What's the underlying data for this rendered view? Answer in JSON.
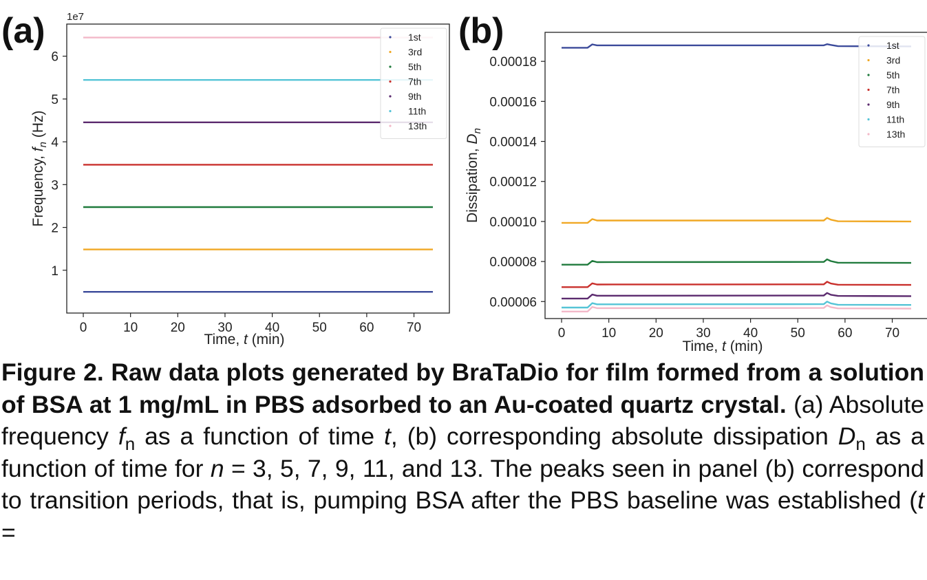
{
  "chart_data": [
    {
      "type": "line",
      "panel_label": "(a)",
      "offset_label": "1e7",
      "xlabel_parts": [
        "Time, ",
        "t",
        " (min)"
      ],
      "ylabel_parts": [
        "Frequency, ",
        "f",
        "n",
        " (Hz)"
      ],
      "xlim": [
        -3.5,
        77.5
      ],
      "ylim": [
        0.0,
        6.75
      ],
      "xticks": [
        0,
        10,
        20,
        30,
        40,
        50,
        60,
        70
      ],
      "yticks": [
        1,
        2,
        3,
        4,
        5,
        6
      ],
      "ytick_labels": [
        "1",
        "2",
        "3",
        "4",
        "5",
        "6"
      ],
      "x": [
        0,
        74
      ],
      "legend_position": "top-right",
      "series": [
        {
          "name": "1st",
          "color": "#3b4a9a",
          "values": [
            0.495,
            0.495
          ]
        },
        {
          "name": "3rd",
          "color": "#f0a824",
          "values": [
            1.485,
            1.485
          ]
        },
        {
          "name": "5th",
          "color": "#1f7a3c",
          "values": [
            2.475,
            2.475
          ]
        },
        {
          "name": "7th",
          "color": "#c9302c",
          "values": [
            3.465,
            3.465
          ]
        },
        {
          "name": "9th",
          "color": "#5b2a6e",
          "values": [
            4.455,
            4.455
          ]
        },
        {
          "name": "11th",
          "color": "#55c4d6",
          "values": [
            5.445,
            5.445
          ]
        },
        {
          "name": "13th",
          "color": "#f3b8c8",
          "values": [
            6.435,
            6.435
          ]
        }
      ]
    },
    {
      "type": "line",
      "panel_label": "(b)",
      "xlabel_parts": [
        "Time, ",
        "t",
        " (min)"
      ],
      "ylabel_parts": [
        "Dissipation, ",
        "D",
        "n"
      ],
      "xlim": [
        -3.5,
        77.5
      ],
      "ylim": [
        5.15e-05,
        0.0001945
      ],
      "xticks": [
        0,
        10,
        20,
        30,
        40,
        50,
        60,
        70
      ],
      "yticks": [
        6e-05,
        8e-05,
        0.0001,
        0.00012,
        0.00014,
        0.00016,
        0.00018
      ],
      "ytick_labels": [
        "0.00006",
        "0.00008",
        "0.00010",
        "0.00012",
        "0.00014",
        "0.00016",
        "0.00018"
      ],
      "x": [
        0,
        5.5,
        6.5,
        7.5,
        55.5,
        56.2,
        57,
        58.5,
        74
      ],
      "legend_position": "top-right",
      "series": [
        {
          "name": "1st",
          "color": "#3b4a9a",
          "values": [
            0.0001868,
            0.0001868,
            0.0001885,
            0.000188,
            0.000188,
            0.0001886,
            0.0001882,
            0.0001876,
            0.0001875
          ]
        },
        {
          "name": "3rd",
          "color": "#f0a824",
          "values": [
            9.93e-05,
            9.93e-05,
            0.0001012,
            0.0001005,
            0.0001005,
            0.0001018,
            0.0001009,
            0.0001001,
            0.0001
          ]
        },
        {
          "name": "5th",
          "color": "#1f7a3c",
          "values": [
            7.84e-05,
            7.84e-05,
            8.03e-05,
            7.97e-05,
            7.98e-05,
            8.11e-05,
            8.02e-05,
            7.94e-05,
            7.93e-05
          ]
        },
        {
          "name": "7th",
          "color": "#c9302c",
          "values": [
            6.72e-05,
            6.72e-05,
            6.91e-05,
            6.85e-05,
            6.86e-05,
            6.99e-05,
            6.9e-05,
            6.84e-05,
            6.83e-05
          ]
        },
        {
          "name": "9th",
          "color": "#5b2a6e",
          "values": [
            6.15e-05,
            6.15e-05,
            6.35e-05,
            6.29e-05,
            6.3e-05,
            6.43e-05,
            6.34e-05,
            6.28e-05,
            6.27e-05
          ]
        },
        {
          "name": "11th",
          "color": "#55c4d6",
          "values": [
            5.7e-05,
            5.7e-05,
            5.92e-05,
            5.86e-05,
            5.87e-05,
            6e-05,
            5.91e-05,
            5.84e-05,
            5.83e-05
          ]
        },
        {
          "name": "13th",
          "color": "#f3b8c8",
          "values": [
            5.5e-05,
            5.5e-05,
            5.73e-05,
            5.67e-05,
            5.68e-05,
            5.81e-05,
            5.72e-05,
            5.66e-05,
            5.65e-05
          ]
        }
      ]
    }
  ],
  "caption": {
    "title": "Figure 2. Raw data plots generated by BraTaDio for film formed from a solution of BSA at 1 mg/mL in PBS adsorbed to an Au-coated quartz crystal.",
    "text": [
      {
        "t": " (a) Absolute frequency ",
        "s": ""
      },
      {
        "t": "f",
        "s": "i"
      },
      {
        "t": "n",
        "s": "sub"
      },
      {
        "t": " as a function of time ",
        "s": ""
      },
      {
        "t": "t",
        "s": "i"
      },
      {
        "t": ", (b) corresponding absolute dissipation ",
        "s": ""
      },
      {
        "t": "D",
        "s": "i"
      },
      {
        "t": "n",
        "s": "sub"
      },
      {
        "t": " as a function of time for ",
        "s": ""
      },
      {
        "t": "n",
        "s": "i"
      },
      {
        "t": " = 3, 5, 7, 9, 11, and 13. The peaks seen in panel (b) correspond to transition periods, that is, pumping BSA after the PBS baseline was established (",
        "s": ""
      },
      {
        "t": "t",
        "s": "i"
      },
      {
        "t": " =",
        "s": ""
      }
    ]
  }
}
